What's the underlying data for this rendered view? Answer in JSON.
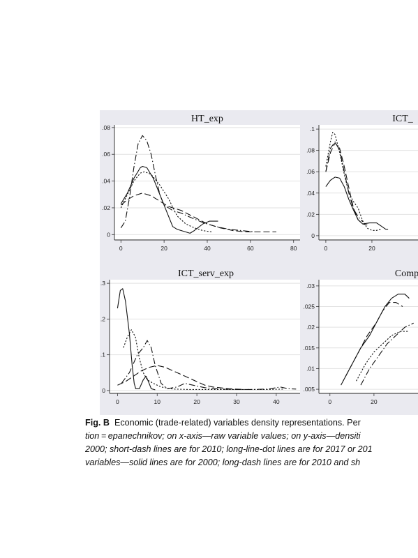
{
  "chart_data": [
    {
      "type": "line",
      "title": "HT_exp",
      "xlim": [
        0,
        80
      ],
      "ylim": [
        0,
        0.08
      ],
      "xticks": [
        "0",
        "20",
        "40",
        "60",
        "80"
      ],
      "yticks": [
        ".08",
        ".06",
        ".04",
        ".02",
        "0"
      ],
      "grid": true,
      "series": [
        {
          "style": "solid",
          "points": [
            [
              0,
              0.023
            ],
            [
              3,
              0.031
            ],
            [
              6,
              0.042
            ],
            [
              9,
              0.05
            ],
            [
              10,
              0.051
            ],
            [
              12,
              0.05
            ],
            [
              15,
              0.042
            ],
            [
              18,
              0.03
            ],
            [
              20,
              0.022
            ],
            [
              24,
              0.006
            ],
            [
              26,
              0.004
            ],
            [
              28,
              0.003
            ],
            [
              32,
              0.001
            ],
            [
              34,
              0.003
            ],
            [
              38,
              0.008
            ],
            [
              41,
              0.01
            ],
            [
              45,
              0.01
            ]
          ]
        },
        {
          "style": "long-dash",
          "points": [
            [
              0,
              0.022
            ],
            [
              3,
              0.026
            ],
            [
              6,
              0.029
            ],
            [
              10,
              0.031
            ],
            [
              14,
              0.029
            ],
            [
              18,
              0.025
            ],
            [
              22,
              0.021
            ],
            [
              28,
              0.018
            ],
            [
              34,
              0.013
            ],
            [
              40,
              0.008
            ],
            [
              46,
              0.005
            ],
            [
              52,
              0.003
            ],
            [
              58,
              0.002
            ],
            [
              64,
              0.002
            ],
            [
              70,
              0.002
            ],
            [
              72,
              0.002
            ]
          ]
        },
        {
          "style": "short-dash",
          "points": [
            [
              0,
              0.02
            ],
            [
              3,
              0.03
            ],
            [
              6,
              0.04
            ],
            [
              9,
              0.046
            ],
            [
              11,
              0.047
            ],
            [
              14,
              0.045
            ],
            [
              18,
              0.037
            ],
            [
              22,
              0.027
            ],
            [
              26,
              0.014
            ],
            [
              30,
              0.008
            ],
            [
              34,
              0.005
            ],
            [
              38,
              0.003
            ],
            [
              42,
              0.002
            ]
          ]
        },
        {
          "style": "long-dash-dot",
          "points": [
            [
              0,
              0.005
            ],
            [
              2,
              0.01
            ],
            [
              4,
              0.028
            ],
            [
              6,
              0.05
            ],
            [
              8,
              0.068
            ],
            [
              10,
              0.074
            ],
            [
              12,
              0.07
            ],
            [
              14,
              0.06
            ],
            [
              16,
              0.044
            ],
            [
              18,
              0.03
            ],
            [
              20,
              0.022
            ],
            [
              24,
              0.018
            ],
            [
              28,
              0.016
            ],
            [
              32,
              0.013
            ],
            [
              38,
              0.009
            ],
            [
              44,
              0.006
            ],
            [
              50,
              0.004
            ],
            [
              56,
              0.003
            ],
            [
              62,
              0.002
            ]
          ]
        }
      ]
    },
    {
      "type": "line",
      "title": "ICT_",
      "xlim": [
        0,
        40
      ],
      "ylim": [
        0,
        0.1
      ],
      "xticks": [
        "0",
        "20"
      ],
      "yticks": [
        ".1",
        ".08",
        ".06",
        ".04",
        ".02",
        "0"
      ],
      "grid": true,
      "series": [
        {
          "style": "solid",
          "points": [
            [
              0,
              0.046
            ],
            [
              2,
              0.052
            ],
            [
              4,
              0.055
            ],
            [
              6,
              0.054
            ],
            [
              8,
              0.046
            ],
            [
              10,
              0.034
            ],
            [
              12,
              0.024
            ],
            [
              14,
              0.015
            ],
            [
              16,
              0.011
            ],
            [
              19,
              0.012
            ],
            [
              22,
              0.012
            ],
            [
              24,
              0.009
            ],
            [
              26,
              0.006
            ],
            [
              27,
              0.006
            ]
          ]
        },
        {
          "style": "long-dash",
          "points": [
            [
              0,
              0.06
            ],
            [
              2,
              0.078
            ],
            [
              4,
              0.087
            ],
            [
              6,
              0.082
            ],
            [
              8,
              0.065
            ],
            [
              10,
              0.045
            ],
            [
              12,
              0.026
            ],
            [
              14,
              0.015
            ],
            [
              16,
              0.011
            ],
            [
              18,
              0.01
            ]
          ]
        },
        {
          "style": "short-dash",
          "points": [
            [
              0,
              0.065
            ],
            [
              2,
              0.088
            ],
            [
              3,
              0.097
            ],
            [
              4,
              0.095
            ],
            [
              6,
              0.078
            ],
            [
              8,
              0.058
            ],
            [
              10,
              0.04
            ],
            [
              12,
              0.032
            ],
            [
              14,
              0.026
            ],
            [
              16,
              0.014
            ],
            [
              18,
              0.007
            ],
            [
              20,
              0.005
            ],
            [
              22,
              0.005
            ],
            [
              24,
              0.006
            ]
          ]
        },
        {
          "style": "long-dash-dot",
          "points": [
            [
              0,
              0.06
            ],
            [
              2,
              0.082
            ],
            [
              4,
              0.088
            ],
            [
              6,
              0.08
            ],
            [
              8,
              0.06
            ],
            [
              10,
              0.04
            ],
            [
              12,
              0.025
            ],
            [
              14,
              0.018
            ],
            [
              16,
              0.013
            ]
          ]
        }
      ]
    },
    {
      "type": "line",
      "title": "ICT_serv_exp",
      "xlim": [
        -2,
        46
      ],
      "ylim": [
        0,
        0.3
      ],
      "xticks": [
        "0",
        "10",
        "20",
        "30",
        "40"
      ],
      "yticks": [
        ".3",
        ".2",
        ".1",
        "0"
      ],
      "grid": true,
      "series": [
        {
          "style": "solid",
          "points": [
            [
              0,
              0.23
            ],
            [
              0.7,
              0.28
            ],
            [
              1.3,
              0.285
            ],
            [
              2,
              0.25
            ],
            [
              3,
              0.16
            ],
            [
              3.7,
              0.07
            ],
            [
              4.2,
              0.02
            ],
            [
              4.6,
              0.005
            ],
            [
              5.5,
              0.005
            ],
            [
              6.5,
              0.03
            ],
            [
              7.2,
              0.04
            ],
            [
              7.8,
              0.025
            ],
            [
              8.5,
              0.005
            ],
            [
              9.5,
              0.002
            ]
          ]
        },
        {
          "style": "long-dash",
          "points": [
            [
              0,
              0.015
            ],
            [
              2,
              0.025
            ],
            [
              4,
              0.04
            ],
            [
              6,
              0.055
            ],
            [
              8,
              0.065
            ],
            [
              10,
              0.07
            ],
            [
              12,
              0.065
            ],
            [
              14,
              0.055
            ],
            [
              16,
              0.045
            ],
            [
              18,
              0.035
            ],
            [
              20,
              0.025
            ],
            [
              22,
              0.015
            ],
            [
              24,
              0.01
            ],
            [
              28,
              0.005
            ],
            [
              32,
              0.003
            ]
          ]
        },
        {
          "style": "short-dash",
          "points": [
            [
              1.5,
              0.12
            ],
            [
              2.5,
              0.15
            ],
            [
              3.5,
              0.17
            ],
            [
              4.5,
              0.15
            ],
            [
              5.5,
              0.09
            ],
            [
              6.5,
              0.05
            ],
            [
              7.5,
              0.03
            ],
            [
              9,
              0.02
            ],
            [
              11,
              0.01
            ],
            [
              14,
              0.004
            ],
            [
              18,
              0.003
            ],
            [
              22,
              0.003
            ],
            [
              26,
              0.003
            ],
            [
              30,
              0.003
            ],
            [
              34,
              0.003
            ],
            [
              38,
              0.003
            ],
            [
              42,
              0.004
            ]
          ]
        },
        {
          "style": "long-dash-dot",
          "points": [
            [
              1,
              0.02
            ],
            [
              3,
              0.05
            ],
            [
              5,
              0.1
            ],
            [
              6.5,
              0.12
            ],
            [
              7.5,
              0.14
            ],
            [
              8.5,
              0.12
            ],
            [
              9.5,
              0.07
            ],
            [
              11,
              0.02
            ],
            [
              12.5,
              0.005
            ],
            [
              15,
              0.01
            ],
            [
              17,
              0.02
            ],
            [
              19,
              0.015
            ],
            [
              22,
              0.008
            ],
            [
              26,
              0.004
            ],
            [
              30,
              0.003
            ],
            [
              34,
              0.003
            ],
            [
              38,
              0.004
            ],
            [
              41,
              0.01
            ],
            [
              43,
              0.005
            ],
            [
              45,
              0.004
            ]
          ]
        }
      ]
    },
    {
      "type": "line",
      "title": "Comp",
      "xlim": [
        -5,
        40
      ],
      "ylim": [
        0.004,
        0.031
      ],
      "xticks": [
        "0",
        "20"
      ],
      "yticks": [
        ".03",
        ".025",
        ".02",
        ".015",
        ".01",
        ".005"
      ],
      "grid": true,
      "series": [
        {
          "style": "solid",
          "points": [
            [
              6,
              0.007
            ],
            [
              10,
              0.011
            ],
            [
              14,
              0.015
            ],
            [
              18,
              0.018
            ],
            [
              22,
              0.022
            ],
            [
              25,
              0.025
            ],
            [
              28,
              0.027
            ],
            [
              31,
              0.028
            ],
            [
              34,
              0.028
            ],
            [
              36,
              0.027
            ]
          ]
        },
        {
          "style": "long-dash",
          "points": [
            [
              5,
              0.006
            ],
            [
              9,
              0.01
            ],
            [
              13,
              0.014
            ],
            [
              17,
              0.018
            ],
            [
              21,
              0.021
            ],
            [
              24,
              0.024
            ],
            [
              27,
              0.026
            ],
            [
              30,
              0.026
            ],
            [
              33,
              0.025
            ]
          ]
        },
        {
          "style": "short-dash",
          "points": [
            [
              12,
              0.007
            ],
            [
              16,
              0.011
            ],
            [
              20,
              0.014
            ],
            [
              24,
              0.016
            ],
            [
              28,
              0.018
            ],
            [
              32,
              0.019
            ],
            [
              36,
              0.019
            ]
          ]
        },
        {
          "style": "long-dash-dot",
          "points": [
            [
              14,
              0.006
            ],
            [
              18,
              0.01
            ],
            [
              22,
              0.013
            ],
            [
              26,
              0.016
            ],
            [
              30,
              0.018
            ],
            [
              34,
              0.02
            ],
            [
              38,
              0.021
            ]
          ]
        }
      ]
    }
  ],
  "caption": {
    "label": "Fig. B",
    "line1": "Economic (trade-related) variables density representations. Per",
    "line2": "tion = epanechnikov; on x-axis—raw variable values; on y-axis—densiti",
    "line3": "2000; short-dash lines are for 2010; long-line-dot lines are for 2017 or 201",
    "line4": "variables—solid lines are for 2000; long-dash lines are for 2010 and sh"
  }
}
